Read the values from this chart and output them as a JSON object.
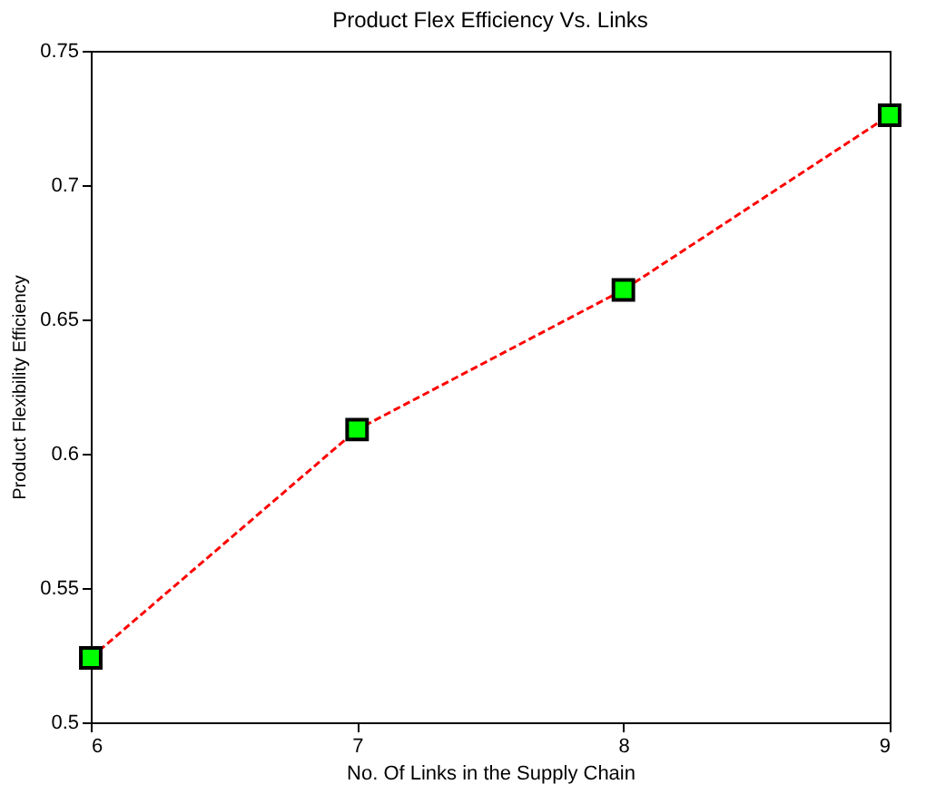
{
  "chart_data": {
    "type": "line",
    "title": "Product Flex Efficiency Vs. Links",
    "xlabel": "No. Of Links in the Supply Chain",
    "ylabel": "Product Flexibility Efficiency",
    "x": [
      6,
      7,
      8,
      9
    ],
    "series": [
      {
        "color": "#ff0000",
        "values": [
          0.524,
          0.609,
          0.661,
          0.726
        ]
      }
    ],
    "xlim": [
      6,
      9
    ],
    "xticks": [
      6,
      7,
      8,
      9
    ],
    "ylim": [
      0.5,
      0.75
    ],
    "yticks": [
      0.5,
      0.55,
      0.6,
      0.65,
      0.7,
      0.75
    ],
    "grid": false,
    "marker": "square",
    "line_style": "dashed"
  }
}
